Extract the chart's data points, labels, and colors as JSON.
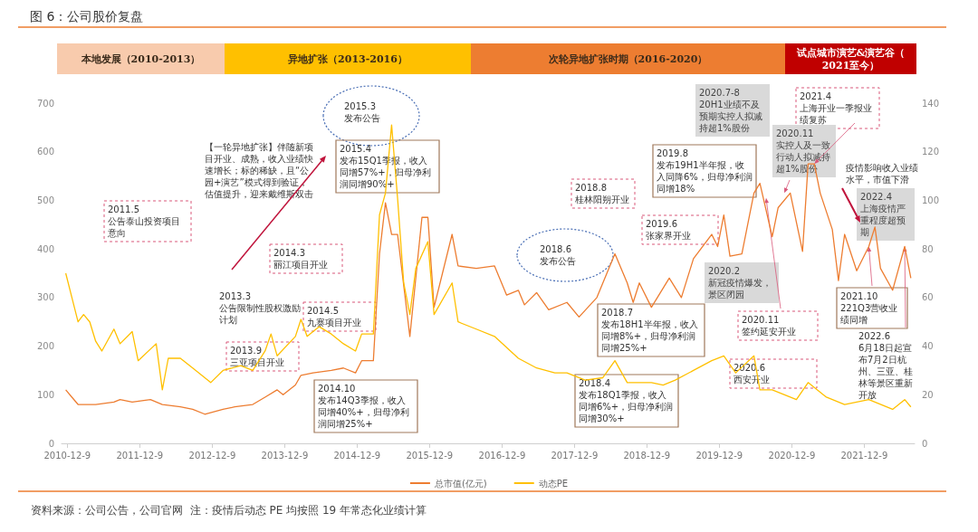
{
  "chart_data": {
    "type": "line",
    "title": "图 6：公司股价复盘",
    "xlim": [
      "2010-11-10",
      "2022-08-20"
    ],
    "xticks": [
      {
        "value": "2010-12-09",
        "label": "2010-12-9"
      },
      {
        "value": "2011-12-09",
        "label": "2011-12-9"
      },
      {
        "value": "2012-12-09",
        "label": "2012-12-9"
      },
      {
        "value": "2013-12-09",
        "label": "2013-12-9"
      },
      {
        "value": "2014-12-09",
        "label": "2014-12-9"
      },
      {
        "value": "2015-12-09",
        "label": "2015-12-9"
      },
      {
        "value": "2016-12-09",
        "label": "2016-12-9"
      },
      {
        "value": "2017-12-09",
        "label": "2017-12-9"
      },
      {
        "value": "2018-12-09",
        "label": "2018-12-9"
      },
      {
        "value": "2019-12-09",
        "label": "2019-12-9"
      },
      {
        "value": "2020-12-09",
        "label": "2020-12-9"
      },
      {
        "value": "2021-12-09",
        "label": "2021-12-9"
      }
    ],
    "ylim": [
      0,
      700
    ],
    "yticks": [
      0,
      100,
      200,
      300,
      400,
      500,
      600,
      700
    ],
    "y2lim": [
      0,
      140
    ],
    "y2ticks": [
      0,
      20,
      40,
      60,
      80,
      100,
      120,
      140
    ],
    "legend": "bottom",
    "series": [
      {
        "name": "总市值(亿元)",
        "color": "#ed7d31",
        "x": [
          "2010-12",
          "2011-01",
          "2011-02",
          "2011-05",
          "2011-08",
          "2011-09",
          "2011-11",
          "2012-02",
          "2012-04",
          "2012-07",
          "2012-09",
          "2012-11",
          "2013-02",
          "2013-04",
          "2013-07",
          "2013-09",
          "2013-11",
          "2013-12",
          "2014-02",
          "2014-03",
          "2014-05",
          "2014-08",
          "2014-10",
          "2014-12",
          "2015-01",
          "2015-03",
          "2015-04",
          "2015-05",
          "2015-06",
          "2015-07",
          "2015-09",
          "2015-11",
          "2015-12",
          "2016-01",
          "2016-04",
          "2016-05",
          "2016-08",
          "2016-11",
          "2017-01",
          "2017-03",
          "2017-04",
          "2017-06",
          "2017-08",
          "2017-11",
          "2018-01",
          "2018-04",
          "2018-07",
          "2018-09",
          "2018-10",
          "2018-11",
          "2019-01",
          "2019-04",
          "2019-06",
          "2019-08",
          "2019-11",
          "2019-12",
          "2020-01",
          "2020-02",
          "2020-04",
          "2020-06",
          "2020-07",
          "2020-09",
          "2020-10",
          "2020-12",
          "2021-02",
          "2021-03",
          "2021-04",
          "2021-05",
          "2021-07",
          "2021-08",
          "2021-09",
          "2021-11",
          "2022-01",
          "2022-02",
          "2022-03",
          "2022-05",
          "2022-07",
          "2022-08"
        ],
        "values": [
          110,
          95,
          80,
          80,
          85,
          90,
          85,
          90,
          80,
          75,
          70,
          60,
          70,
          75,
          80,
          95,
          110,
          100,
          120,
          140,
          145,
          150,
          155,
          145,
          170,
          170,
          390,
          495,
          430,
          430,
          220,
          465,
          465,
          280,
          430,
          365,
          360,
          365,
          305,
          315,
          285,
          310,
          275,
          290,
          260,
          300,
          390,
          330,
          290,
          330,
          280,
          340,
          300,
          380,
          430,
          405,
          470,
          385,
          390,
          515,
          535,
          425,
          485,
          515,
          395,
          575,
          575,
          515,
          440,
          335,
          430,
          355,
          405,
          445,
          360,
          315,
          405,
          340
        ]
      },
      {
        "name": "动态PE",
        "color": "#ffc000",
        "axis": "y2",
        "x": [
          "2010-12",
          "2011-01",
          "2011-02",
          "2011-03",
          "2011-04",
          "2011-05",
          "2011-06",
          "2011-08",
          "2011-09",
          "2011-11",
          "2011-12",
          "2012-03",
          "2012-04",
          "2012-05",
          "2012-07",
          "2012-09",
          "2012-12",
          "2013-02",
          "2013-05",
          "2013-07",
          "2013-09",
          "2013-10",
          "2013-11",
          "2014-02",
          "2014-03",
          "2014-04",
          "2014-06",
          "2014-08",
          "2014-10",
          "2014-12",
          "2015-01",
          "2015-03",
          "2015-04",
          "2015-05",
          "2015-06",
          "2015-07",
          "2015-08",
          "2015-09",
          "2015-10",
          "2015-12",
          "2016-01",
          "2016-04",
          "2016-05",
          "2016-08",
          "2016-11",
          "2017-03",
          "2017-06",
          "2017-09",
          "2017-11",
          "2018-02",
          "2018-05",
          "2018-07",
          "2018-09",
          "2019-01",
          "2019-03",
          "2019-05",
          "2019-08",
          "2019-11",
          "2020-01",
          "2020-03",
          "2020-06",
          "2020-07",
          "2020-09",
          "2021-01",
          "2021-03",
          "2021-06",
          "2021-09",
          "2022-01",
          "2022-05",
          "2022-07",
          "2022-08"
        ],
        "values": [
          70,
          60,
          50,
          53,
          50,
          42,
          38,
          47,
          41,
          46,
          34,
          41,
          22,
          35,
          35,
          31,
          25,
          30,
          32,
          30,
          38,
          45,
          36,
          44,
          51,
          44,
          48,
          45,
          41,
          38,
          45,
          45,
          94,
          103,
          131,
          101,
          66,
          53,
          72,
          83,
          53,
          66,
          50,
          47,
          44,
          35,
          31,
          29,
          29,
          26,
          27,
          34,
          25,
          25,
          24,
          26,
          30,
          34,
          36,
          29,
          36,
          22,
          22,
          18,
          25,
          19,
          16,
          18,
          14,
          18,
          15
        ]
      }
    ],
    "annotations": [
      "2011.5\n公告泰山投资项目意向",
      "【一轮异地扩张】伴随新项目开业、成熟，收入业绩快速增长；标的稀缺，且“公园+演艺”模式得到验证，估值提升，迎来戴维斯双击",
      "2014.3\n丽江项目开业",
      "2013.3\n公告限制性股权激励计划",
      "2014.5\n九寨项目开业",
      "2013.9\n三亚项目开业",
      "2014.10\n发布14Q3季报，收入同增40%+，归母净利润同增25%+",
      "2015.3\n发布公告",
      "2015.4\n发布15Q1季报，收入同增57%+，归母净利润同增90%+",
      "2018.8\n桂林阳朔开业",
      "2018.6\n发布公告",
      "2018.7\n发布18H1半年报，收入同增8%+，归母净利润同增25%+",
      "2018.4\n发布18Q1季报，收入同增6%+，归母净利润同增30%+",
      "2019.8\n发布19H1半年报，收入同降6%，归母净利润同增18%",
      "2019.6\n张家界开业",
      "2020.7-8\n20H1业绩不及预期实控人拟减持超1%股份",
      "2020.2\n新冠疫情爆发，景区闭园",
      {
        "text": "2020.11\n签约延安开业",
        "x": "2020-08",
        "y": 505
      },
      "2020.6\n西安开业",
      {
        "text": "2021.4\n上海开业一季报业绩复苏",
        "x": "2021-04",
        "y": 575
      },
      {
        "text": "2020.11\n实控人及一致行动人拟减持超1%股份",
        "x": "2020-11",
        "y": 515
      },
      "疫情影响收入业绩水平，市值下滑",
      "2022.4\n上海疫情严重程度超预期",
      {
        "text": "2021.10\n221Q3营收业绩同增",
        "x": "2022-01",
        "y": 405
      },
      {
        "text": "2022.6\n6月18日起宣布7月2日杭州、三亚、桂林等景区重新开放",
        "x": "2022-07",
        "y": 405
      },
      "资料来源：公司公告，公司官网  注：疫情后动态 PE 均按照 19 年常态化业绩计算",
      "本地发展（2010-2013）",
      "异地扩张（2013-2016）",
      "次轮异地扩张时期（2016-2020）",
      "试点城市演艺&演艺谷（2021至今）"
    ]
  }
}
